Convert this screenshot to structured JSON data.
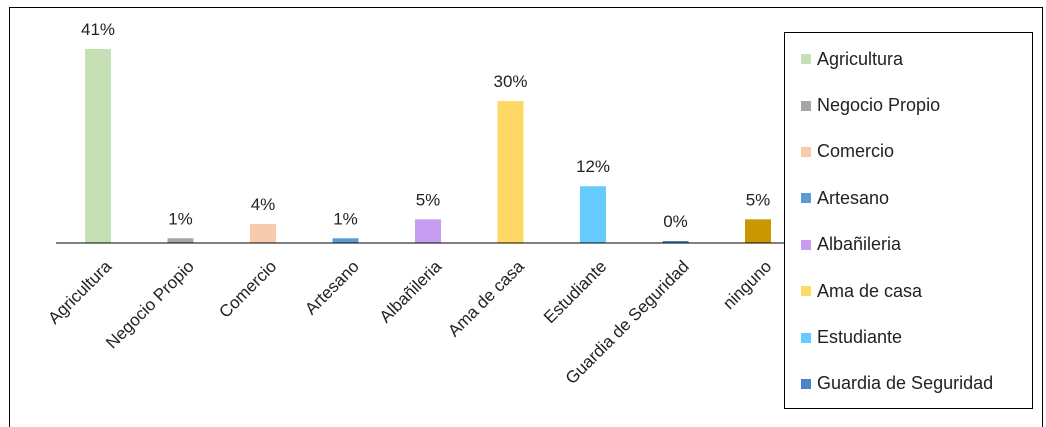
{
  "chart_data": {
    "type": "bar",
    "title": "",
    "xlabel": "",
    "ylabel": "",
    "ylim": [
      0,
      41
    ],
    "grid": false,
    "legend_position": "right",
    "categories": [
      "Agricultura",
      "Negocio Propio",
      "Comercio",
      "Artesano",
      "Albañileria",
      "Ama de casa",
      "Estudiante",
      "Guardia de Seguridad",
      "ninguno"
    ],
    "values": [
      41,
      1,
      4,
      1,
      5,
      30,
      12,
      0,
      5
    ],
    "data_labels": [
      "41%",
      "1%",
      "4%",
      "1%",
      "5%",
      "30%",
      "12%",
      "0%",
      "5%"
    ],
    "colors": [
      "#c5e0b4",
      "#a6a6a6",
      "#f8cbad",
      "#5b9bd5",
      "#c59ef2",
      "#ffd966",
      "#66ccff",
      "#4a86c5",
      "#c99700"
    ],
    "legend": [
      "Agricultura",
      "Negocio Propio",
      "Comercio",
      "Artesano",
      "Albañileria",
      "Ama de casa",
      "Estudiante",
      "Guardia de Seguridad"
    ]
  }
}
